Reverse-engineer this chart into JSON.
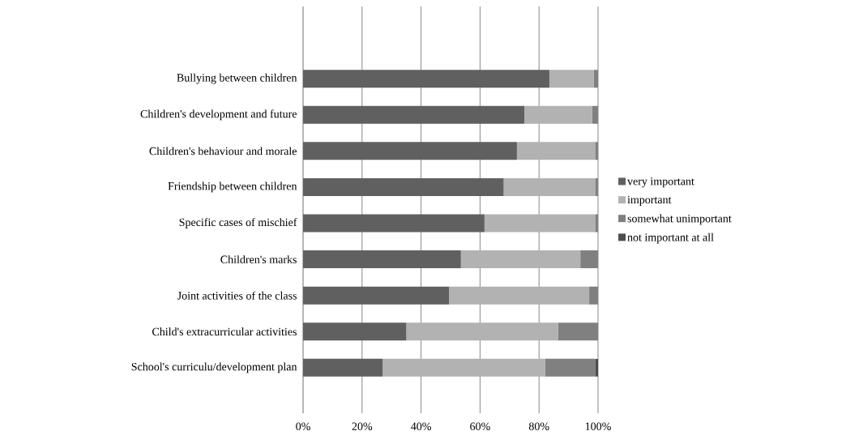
{
  "chart_data": {
    "type": "bar",
    "orientation": "horizontal",
    "stacked": true,
    "categories": [
      "Bullying between children",
      "Children's development and future",
      "Children's behaviour and morale",
      "Friendship between children",
      "Specific cases of mischief",
      "Children's marks",
      "Joint activities of the class",
      "Child's extracurricular activities",
      "School's curriculu/development plan"
    ],
    "series": [
      {
        "name": "very important",
        "color": "#606060",
        "values": [
          83.5,
          75,
          72.5,
          68,
          61.5,
          53.5,
          49.5,
          35,
          27
        ]
      },
      {
        "name": "important",
        "color": "#b2b2b2",
        "values": [
          15,
          23,
          26.5,
          31,
          37.5,
          40.5,
          47.5,
          51.5,
          55
        ]
      },
      {
        "name": "somewhat unimportant",
        "color": "#808080",
        "values": [
          1.5,
          2,
          1,
          1,
          1,
          6,
          3,
          13.5,
          17
        ]
      },
      {
        "name": "not important at all",
        "color": "#4d4d4d",
        "values": [
          0,
          0,
          0,
          0,
          0,
          0,
          0,
          0,
          1
        ]
      }
    ],
    "xlim": [
      0,
      100
    ],
    "xticks": [
      {
        "value": 0,
        "label": "0%"
      },
      {
        "value": 20,
        "label": "20%"
      },
      {
        "value": 40,
        "label": "40%"
      },
      {
        "value": 60,
        "label": "60%"
      },
      {
        "value": 80,
        "label": "80%"
      },
      {
        "value": 100,
        "label": "100%"
      }
    ],
    "grid": "x",
    "legend": "right"
  }
}
